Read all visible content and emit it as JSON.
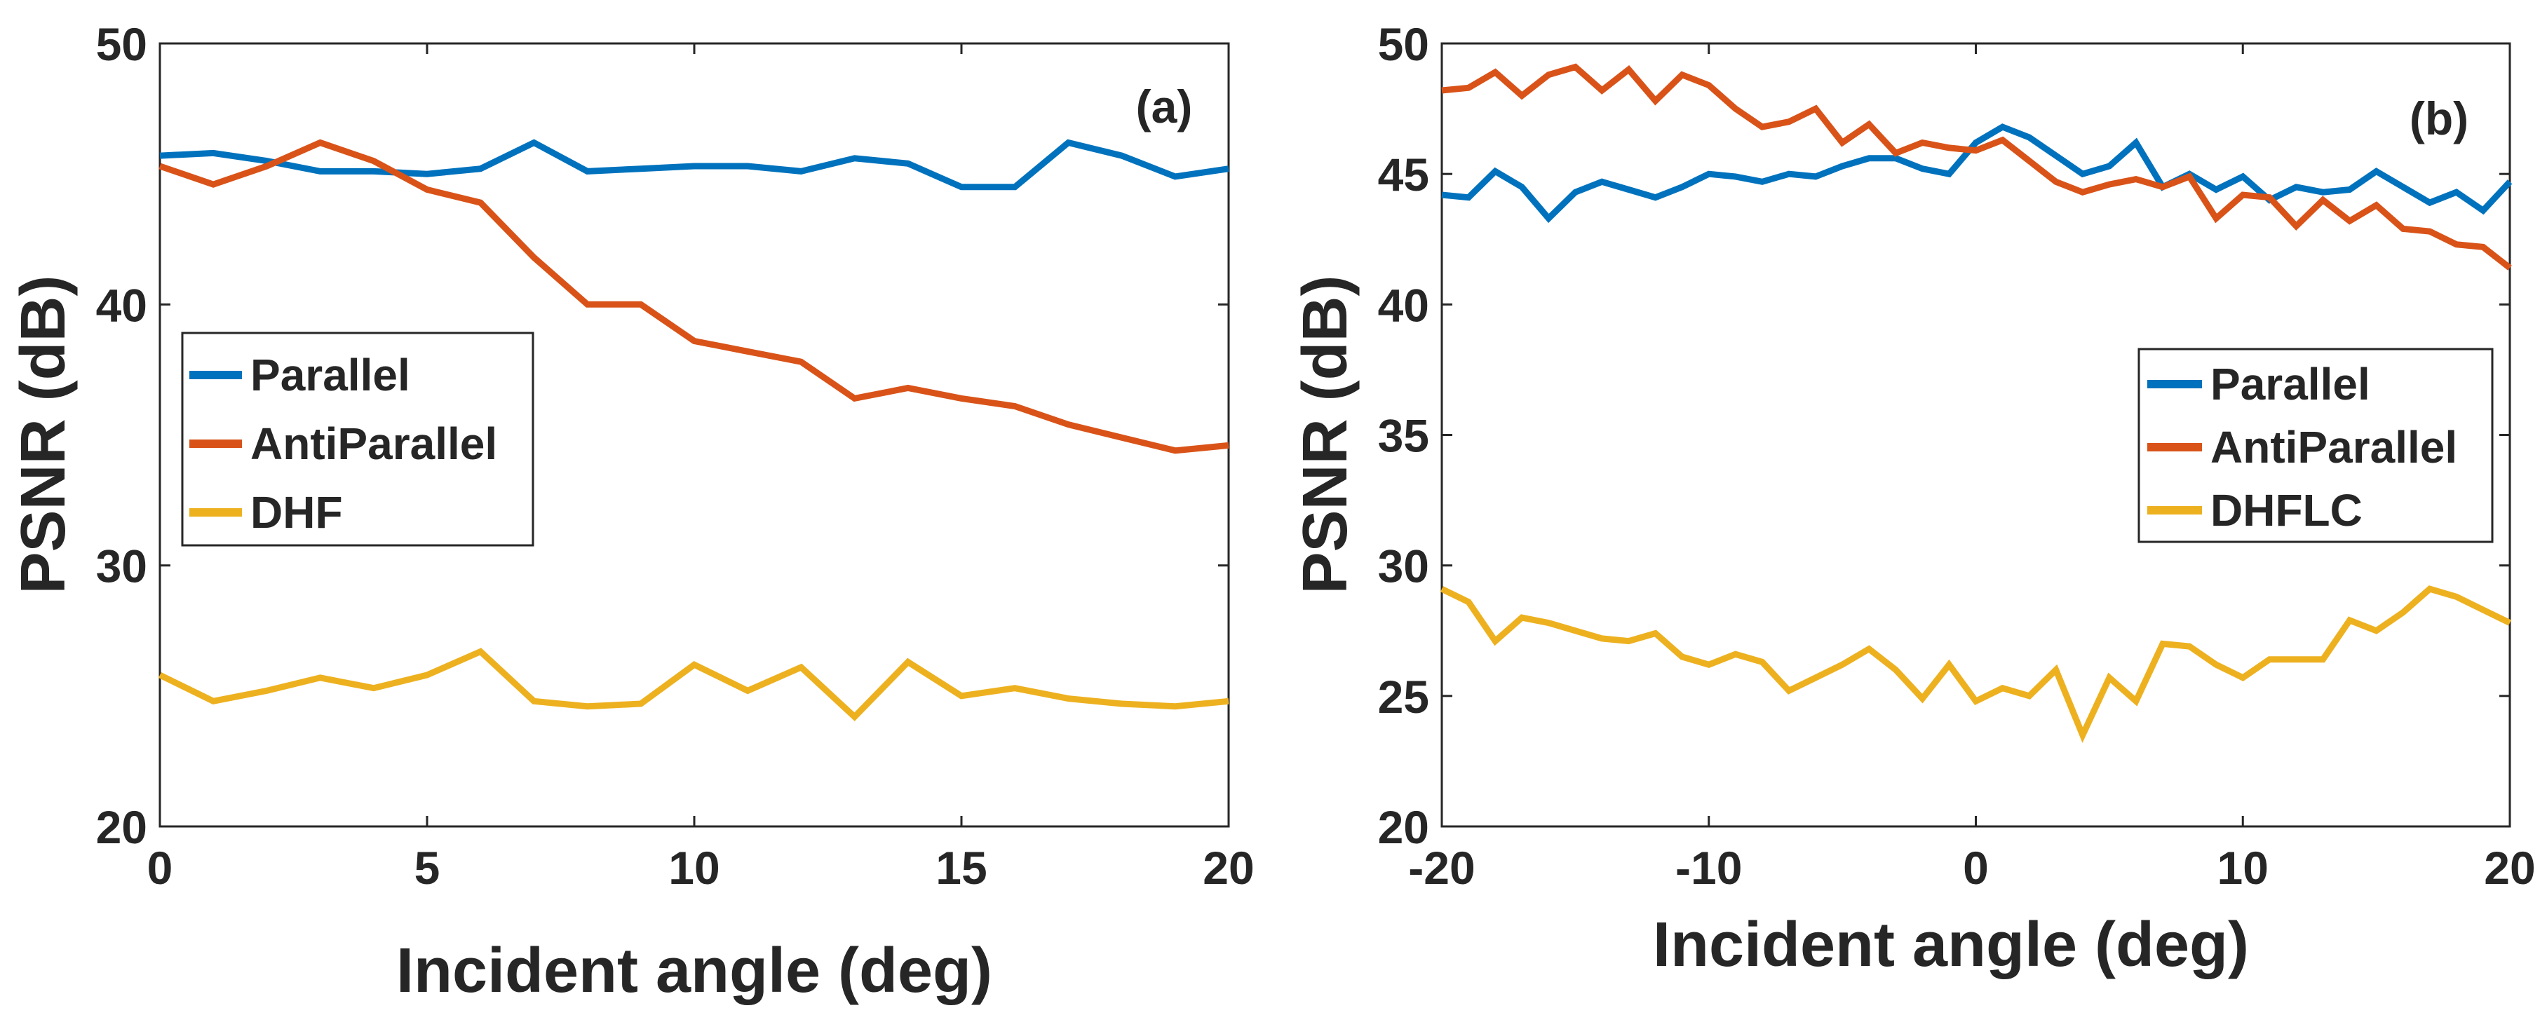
{
  "colors": {
    "parallel": "#0072BD",
    "antiparallel": "#D95319",
    "dhf": "#EDB120",
    "axis": "#262626",
    "background": "#ffffff"
  },
  "chart_data": [
    {
      "type": "line",
      "panel_label": "(a)",
      "xlabel": "Incident angle (deg)",
      "ylabel": "PSNR (dB)",
      "xlim": [
        0,
        20
      ],
      "ylim": [
        20,
        50
      ],
      "xticks": [
        0,
        5,
        10,
        15,
        20
      ],
      "xtick_labels": [
        "0",
        "5",
        "10",
        "15",
        "20"
      ],
      "yticks": [
        20,
        30,
        40,
        50
      ],
      "ytick_labels": [
        "20",
        "30",
        "40",
        "50"
      ],
      "legend_position": "center-left",
      "x": [
        0,
        1,
        2,
        3,
        4,
        5,
        6,
        7,
        8,
        9,
        10,
        11,
        12,
        13,
        14,
        15,
        16,
        17,
        18,
        19,
        20
      ],
      "series": [
        {
          "name": "Parallel",
          "color_key": "parallel",
          "values": [
            45.7,
            45.8,
            45.5,
            45.1,
            45.1,
            45.0,
            45.2,
            46.2,
            45.1,
            45.2,
            45.3,
            45.3,
            45.1,
            45.6,
            45.4,
            44.5,
            44.5,
            46.2,
            45.7,
            44.9,
            45.2
          ]
        },
        {
          "name": "AntiParallel",
          "color_key": "antiparallel",
          "values": [
            45.3,
            44.6,
            45.3,
            46.2,
            45.5,
            44.4,
            43.9,
            41.8,
            40.0,
            40.0,
            38.6,
            38.2,
            37.8,
            36.4,
            36.8,
            36.4,
            36.1,
            35.4,
            34.9,
            34.4,
            34.6
          ]
        },
        {
          "name": "DHF",
          "color_key": "dhf",
          "values": [
            25.8,
            24.8,
            25.2,
            25.7,
            25.3,
            25.8,
            26.7,
            24.8,
            24.6,
            24.7,
            26.2,
            25.2,
            26.1,
            24.2,
            26.3,
            25.0,
            25.3,
            24.9,
            24.7,
            24.6,
            24.8
          ]
        }
      ]
    },
    {
      "type": "line",
      "panel_label": "(b)",
      "xlabel": "Incident angle (deg)",
      "ylabel": "PSNR (dB)",
      "xlim": [
        -20,
        20
      ],
      "ylim": [
        20,
        50
      ],
      "xticks": [
        -20,
        -10,
        0,
        10,
        20
      ],
      "xtick_labels": [
        "-20",
        "-10",
        "0",
        "10",
        "20"
      ],
      "yticks": [
        20,
        25,
        30,
        35,
        40,
        45,
        50
      ],
      "ytick_labels": [
        "20",
        "25",
        "30",
        "35",
        "40",
        "45",
        "50"
      ],
      "legend_position": "center-right",
      "x": [
        -20,
        -19,
        -18,
        -17,
        -16,
        -15,
        -14,
        -13,
        -12,
        -11,
        -10,
        -9,
        -8,
        -7,
        -6,
        -5,
        -4,
        -3,
        -2,
        -1,
        0,
        1,
        2,
        3,
        4,
        5,
        6,
        7,
        8,
        9,
        10,
        11,
        12,
        13,
        14,
        15,
        16,
        17,
        18,
        19,
        20
      ],
      "series": [
        {
          "name": "Parallel",
          "color_key": "parallel",
          "values": [
            44.2,
            44.1,
            45.1,
            44.5,
            43.3,
            44.3,
            44.7,
            44.4,
            44.1,
            44.5,
            45.0,
            44.9,
            44.7,
            45.0,
            44.9,
            45.3,
            45.6,
            45.6,
            45.2,
            45.0,
            46.2,
            46.8,
            46.4,
            45.7,
            45.0,
            45.3,
            46.2,
            44.5,
            45.0,
            44.4,
            44.9,
            44.0,
            44.5,
            44.3,
            44.4,
            45.1,
            44.5,
            43.9,
            44.3,
            43.6,
            44.7
          ]
        },
        {
          "name": "AntiParallel",
          "color_key": "antiparallel",
          "values": [
            48.2,
            48.3,
            48.9,
            48.0,
            48.8,
            49.1,
            48.2,
            49.0,
            47.8,
            48.8,
            48.4,
            47.5,
            46.8,
            47.0,
            47.5,
            46.2,
            46.9,
            45.8,
            46.2,
            46.0,
            45.9,
            46.3,
            45.5,
            44.7,
            44.3,
            44.6,
            44.8,
            44.5,
            44.9,
            43.3,
            44.2,
            44.1,
            43.0,
            44.0,
            43.2,
            43.8,
            42.9,
            42.8,
            42.3,
            42.2,
            41.4
          ]
        },
        {
          "name": "DHFLC",
          "color_key": "dhf",
          "values": [
            29.1,
            28.6,
            27.1,
            28.0,
            27.8,
            27.5,
            27.2,
            27.1,
            27.4,
            26.5,
            26.2,
            26.6,
            26.3,
            25.2,
            25.7,
            26.2,
            26.8,
            26.0,
            24.9,
            26.2,
            24.8,
            25.3,
            25.0,
            26.0,
            23.5,
            25.7,
            24.8,
            27.0,
            26.9,
            26.2,
            25.7,
            26.4,
            26.4,
            26.4,
            27.9,
            27.5,
            28.2,
            29.1,
            28.8,
            28.3,
            27.8
          ]
        }
      ]
    }
  ]
}
